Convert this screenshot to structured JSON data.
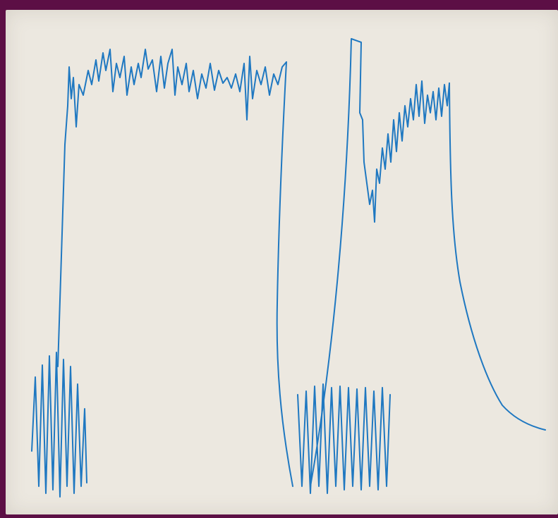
{
  "photo": {
    "subject": "",
    "colors": {
      "border": "#5c0f45",
      "paper": "#ece8e0",
      "trace": "#1f78c1"
    }
  }
}
